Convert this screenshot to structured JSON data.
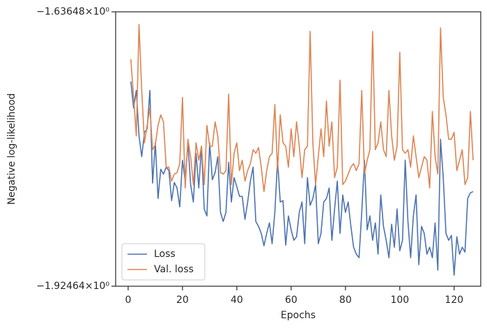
{
  "chart_data": {
    "type": "line",
    "xlabel": "Epochs",
    "ylabel": "Negative log-likelihood",
    "x": [
      1,
      2,
      3,
      4,
      5,
      6,
      7,
      8,
      9,
      10,
      11,
      12,
      13,
      14,
      15,
      16,
      17,
      18,
      19,
      20,
      21,
      22,
      23,
      24,
      25,
      26,
      27,
      28,
      29,
      30,
      31,
      32,
      33,
      34,
      35,
      36,
      37,
      38,
      39,
      40,
      41,
      42,
      43,
      44,
      45,
      46,
      47,
      48,
      49,
      50,
      51,
      52,
      53,
      54,
      55,
      56,
      57,
      58,
      59,
      60,
      61,
      62,
      63,
      64,
      65,
      66,
      67,
      68,
      69,
      70,
      71,
      72,
      73,
      74,
      75,
      76,
      77,
      78,
      79,
      80,
      81,
      82,
      83,
      84,
      85,
      86,
      87,
      88,
      89,
      90,
      91,
      92,
      93,
      94,
      95,
      96,
      97,
      98,
      99,
      100,
      101,
      102,
      103,
      104,
      105,
      106,
      107,
      108,
      109,
      110,
      111,
      112,
      113,
      114,
      115,
      116,
      117,
      118,
      119,
      120,
      121,
      122,
      123,
      124,
      125,
      126,
      127
    ],
    "series": [
      {
        "name": "Loss",
        "color": "#4c72b0",
        "values": [
          -1.7096,
          -1.7374,
          -1.7191,
          -1.7667,
          -1.7886,
          -1.763,
          -1.7594,
          -1.7191,
          -1.8164,
          -1.774,
          -1.8325,
          -1.8018,
          -1.8069,
          -1.7996,
          -1.8032,
          -1.8347,
          -1.8157,
          -1.8215,
          -1.8413,
          -1.7923,
          -1.8142,
          -1.774,
          -1.8179,
          -1.8362,
          -1.785,
          -1.8215,
          -1.7776,
          -1.8435,
          -1.8508,
          -1.774,
          -1.8128,
          -1.8054,
          -1.7886,
          -1.8471,
          -1.8566,
          -1.8471,
          -1.7945,
          -1.8362,
          -1.8106,
          -1.8201,
          -1.8303,
          -1.8303,
          -1.8544,
          -1.8362,
          -1.8142,
          -1.7996,
          -1.8566,
          -1.8618,
          -1.8691,
          -1.8822,
          -1.8691,
          -1.8581,
          -1.88,
          -1.8471,
          -1.7923,
          -1.8362,
          -1.8347,
          -1.8815,
          -1.8508,
          -1.8654,
          -1.8764,
          -1.8727,
          -1.8471,
          -1.8362,
          -1.88,
          -1.8106,
          -1.8398,
          -1.8325,
          -1.8179,
          -1.88,
          -1.8691,
          -1.8362,
          -1.8325,
          -1.8215,
          -1.8764,
          -1.8435,
          -1.8142,
          -1.8691,
          -1.8288,
          -1.8471,
          -1.8362,
          -1.8618,
          -1.8837,
          -1.891,
          -1.8947,
          -1.8471,
          -1.7923,
          -1.8654,
          -1.8508,
          -1.8764,
          -1.8581,
          -1.891,
          -1.8288,
          -1.8618,
          -1.8764,
          -1.8947,
          -1.8596,
          -1.8837,
          -1.8435,
          -1.8874,
          -1.8764,
          -1.7923,
          -1.8566,
          -1.8947,
          -1.8508,
          -1.8288,
          -1.902,
          -1.8618,
          -1.8691,
          -1.891,
          -1.8837,
          -1.8947,
          -1.8581,
          -1.9078,
          -1.7703,
          -1.8106,
          -1.8691,
          -1.8764,
          -1.8713,
          -1.913,
          -1.8727,
          -1.891,
          -1.8837,
          -1.8888,
          -1.8325,
          -1.8266,
          -1.8252
        ]
      },
      {
        "name": "Val. loss",
        "color": "#dd8452",
        "values": [
          -1.6862,
          -1.7264,
          -1.7667,
          -1.6497,
          -1.7191,
          -1.774,
          -1.7557,
          -1.7374,
          -1.7813,
          -1.7762,
          -1.7557,
          -1.7447,
          -1.752,
          -1.7996,
          -1.7996,
          -1.8142,
          -1.8069,
          -1.8054,
          -1.7959,
          -1.7264,
          -1.8215,
          -1.7703,
          -1.7886,
          -1.8179,
          -1.774,
          -1.7923,
          -1.7776,
          -1.8179,
          -1.7557,
          -1.7776,
          -1.7776,
          -1.752,
          -1.7667,
          -1.8054,
          -1.8069,
          -1.8032,
          -1.7228,
          -1.8179,
          -1.785,
          -1.774,
          -1.8032,
          -1.7923,
          -1.8142,
          -1.8032,
          -1.7959,
          -1.7813,
          -1.785,
          -1.7791,
          -1.7996,
          -1.8252,
          -1.8032,
          -1.7886,
          -1.785,
          -1.7338,
          -1.8032,
          -1.7447,
          -1.774,
          -1.7776,
          -1.7996,
          -1.7594,
          -1.7886,
          -1.752,
          -1.7776,
          -1.8106,
          -1.7813,
          -1.7776,
          -1.657,
          -1.774,
          -1.8179,
          -1.7886,
          -1.7594,
          -1.7886,
          -1.7301,
          -1.7776,
          -1.752,
          -1.8106,
          -1.7996,
          -1.7082,
          -1.8179,
          -1.8142,
          -1.8069,
          -1.7996,
          -1.7959,
          -1.8032,
          -1.7959,
          -1.7191,
          -1.8069,
          -1.7923,
          -1.7813,
          -1.657,
          -1.7813,
          -1.774,
          -1.752,
          -1.7813,
          -1.7886,
          -1.7191,
          -1.7667,
          -1.7923,
          -1.7776,
          -1.6789,
          -1.7813,
          -1.785,
          -1.7813,
          -1.7996,
          -1.7667,
          -1.7886,
          -1.8106,
          -1.7996,
          -1.7886,
          -1.7923,
          -1.8215,
          -1.7411,
          -1.7886,
          -1.8069,
          -1.6533,
          -1.7264,
          -1.7447,
          -1.7703,
          -1.7703,
          -1.763,
          -1.8032,
          -1.7923,
          -1.7813,
          -1.8179,
          -1.8106,
          -1.7411,
          -1.7923
        ]
      }
    ],
    "xlim": [
      -4.6,
      129.8
    ],
    "xticks": [
      0,
      20,
      40,
      60,
      80,
      100,
      120
    ],
    "ylim": [
      -1.92464,
      -1.63648
    ],
    "yticks": [
      {
        "value": -1.92464,
        "label": "−1.92464×10⁰"
      },
      {
        "value": -1.63648,
        "label": "−1.63648×10⁰"
      }
    ],
    "legend": "lower left",
    "grid": false
  }
}
